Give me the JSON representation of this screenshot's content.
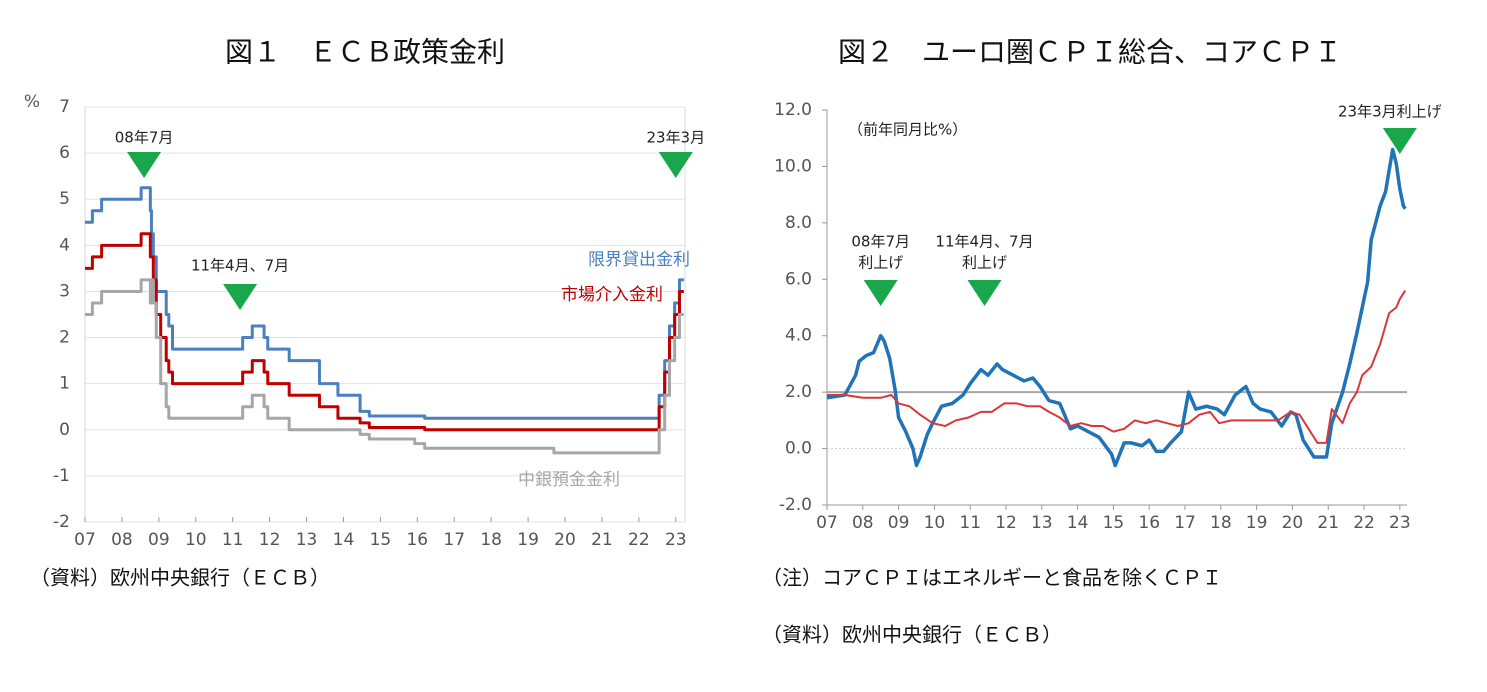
{
  "chart_data": [
    {
      "type": "line",
      "step": true,
      "title": "図１　ＥＣＢ政策金利",
      "unit": "%",
      "x": [
        2007.0,
        2007.2,
        2007.45,
        2008.52,
        2008.77,
        2008.8,
        2008.85,
        2008.93,
        2009.05,
        2009.2,
        2009.27,
        2009.37,
        2011.27,
        2011.53,
        2011.85,
        2011.95,
        2012.53,
        2013.35,
        2013.85,
        2014.45,
        2014.7,
        2015.93,
        2016.2,
        2019.7,
        2022.55,
        2022.7,
        2022.83,
        2022.97,
        2023.1,
        2023.22
      ],
      "series": [
        {
          "name": "限界貸出金利",
          "color": "#4a7fc1",
          "values": [
            4.5,
            4.75,
            5.0,
            5.25,
            4.75,
            4.25,
            3.75,
            3.0,
            3.0,
            2.5,
            2.25,
            1.75,
            2.0,
            2.25,
            2.0,
            1.75,
            1.5,
            1.0,
            0.75,
            0.4,
            0.3,
            0.3,
            0.25,
            0.25,
            0.75,
            1.5,
            2.25,
            2.75,
            3.25,
            3.25
          ]
        },
        {
          "name": "市場介入金利",
          "color": "#c00000",
          "values": [
            3.5,
            3.75,
            4.0,
            4.25,
            3.75,
            3.75,
            3.25,
            2.5,
            2.0,
            1.5,
            1.25,
            1.0,
            1.25,
            1.5,
            1.25,
            1.0,
            0.75,
            0.5,
            0.25,
            0.15,
            0.05,
            0.05,
            0,
            0,
            0.5,
            1.25,
            2.0,
            2.5,
            3.0,
            3.0
          ]
        },
        {
          "name": "中銀預金金利",
          "color": "#a6a6a6",
          "values": [
            2.5,
            2.75,
            3.0,
            3.25,
            2.75,
            3.25,
            2.75,
            2.0,
            1.0,
            0.5,
            0.25,
            0.25,
            0.5,
            0.75,
            0.5,
            0.25,
            0,
            0,
            0,
            -0.1,
            -0.2,
            -0.3,
            -0.4,
            -0.5,
            0,
            0.75,
            1.5,
            2.0,
            2.5,
            2.5
          ]
        }
      ],
      "xlim": [
        2007,
        2023.25
      ],
      "xticks": [
        {
          "value": 2007,
          "label": "07"
        },
        {
          "value": 2008,
          "label": "08"
        },
        {
          "value": 2009,
          "label": "09"
        },
        {
          "value": 2010,
          "label": "10"
        },
        {
          "value": 2011,
          "label": "11"
        },
        {
          "value": 2012,
          "label": "12"
        },
        {
          "value": 2013,
          "label": "13"
        },
        {
          "value": 2014,
          "label": "14"
        },
        {
          "value": 2015,
          "label": "15"
        },
        {
          "value": 2016,
          "label": "16"
        },
        {
          "value": 2017,
          "label": "17"
        },
        {
          "value": 2018,
          "label": "18"
        },
        {
          "value": 2019,
          "label": "19"
        },
        {
          "value": 2020,
          "label": "20"
        },
        {
          "value": 2021,
          "label": "21"
        },
        {
          "value": 2022,
          "label": "22"
        },
        {
          "value": 2023,
          "label": "23"
        }
      ],
      "ylim": [
        -2,
        7
      ],
      "yticks": [
        -2,
        -1,
        0,
        1,
        2,
        3,
        4,
        5,
        6,
        7
      ],
      "grid": true,
      "annotations": [
        {
          "label": [
            "08年7月"
          ],
          "x": 2008.6
        },
        {
          "label": [
            "11年4月、7月"
          ],
          "x": 2011.2
        },
        {
          "label": [
            "23年3月"
          ],
          "x": 2023.0
        }
      ],
      "annotation_color": "#1aa64a",
      "notes": [
        "（資料）欧州中央銀行（ＥＣＢ）"
      ]
    },
    {
      "type": "line",
      "title": "図２　ユーロ圏ＣＰＩ総合、コアＣＰＩ",
      "subtitle": "（前年同月比%）",
      "series": [
        {
          "color": "#1f73b7",
          "width": 3.5,
          "x": [
            2007.0,
            2007.5,
            2007.8,
            2007.9,
            2008.1,
            2008.3,
            2008.5,
            2008.6,
            2008.75,
            2008.9,
            2009.0,
            2009.2,
            2009.4,
            2009.5,
            2009.6,
            2009.8,
            2009.95,
            2010.2,
            2010.5,
            2010.8,
            2011.0,
            2011.3,
            2011.5,
            2011.75,
            2011.9,
            2012.2,
            2012.5,
            2012.75,
            2012.95,
            2013.2,
            2013.5,
            2013.8,
            2014.0,
            2014.3,
            2014.6,
            2014.95,
            2015.05,
            2015.3,
            2015.5,
            2015.8,
            2016.0,
            2016.2,
            2016.4,
            2016.6,
            2016.9,
            2017.1,
            2017.3,
            2017.6,
            2017.9,
            2018.1,
            2018.4,
            2018.7,
            2018.9,
            2019.1,
            2019.4,
            2019.7,
            2019.95,
            2020.1,
            2020.3,
            2020.6,
            2020.95,
            2021.1,
            2021.4,
            2021.6,
            2021.8,
            2021.95,
            2022.1,
            2022.2,
            2022.45,
            2022.6,
            2022.8,
            2022.9,
            2023.0,
            2023.1,
            2023.15
          ],
          "values": [
            1.8,
            1.9,
            2.6,
            3.1,
            3.3,
            3.4,
            4.0,
            3.8,
            3.2,
            2.1,
            1.1,
            0.6,
            0.0,
            -0.6,
            -0.3,
            0.5,
            0.9,
            1.5,
            1.6,
            1.9,
            2.3,
            2.8,
            2.6,
            3.0,
            2.8,
            2.6,
            2.4,
            2.5,
            2.2,
            1.7,
            1.6,
            0.7,
            0.8,
            0.6,
            0.4,
            -0.2,
            -0.6,
            0.2,
            0.2,
            0.1,
            0.3,
            -0.1,
            -0.1,
            0.2,
            0.6,
            2.0,
            1.4,
            1.5,
            1.4,
            1.2,
            1.9,
            2.2,
            1.6,
            1.4,
            1.3,
            0.8,
            1.3,
            1.2,
            0.3,
            -0.3,
            -0.3,
            0.9,
            2.0,
            3.0,
            4.1,
            5.0,
            5.9,
            7.4,
            8.6,
            9.1,
            10.6,
            10.1,
            9.2,
            8.6,
            8.5
          ]
        },
        {
          "color": "#d9373a",
          "width": 2,
          "x": [
            2007.0,
            2007.5,
            2008.0,
            2008.5,
            2008.8,
            2009.0,
            2009.3,
            2009.6,
            2009.95,
            2010.3,
            2010.6,
            2010.95,
            2011.3,
            2011.6,
            2011.95,
            2012.3,
            2012.6,
            2012.95,
            2013.2,
            2013.5,
            2013.8,
            2014.1,
            2014.4,
            2014.7,
            2015.0,
            2015.3,
            2015.6,
            2015.9,
            2016.2,
            2016.5,
            2016.8,
            2017.1,
            2017.4,
            2017.7,
            2017.95,
            2018.3,
            2018.6,
            2018.95,
            2019.3,
            2019.6,
            2019.95,
            2020.2,
            2020.5,
            2020.7,
            2020.95,
            2021.1,
            2021.4,
            2021.6,
            2021.8,
            2021.95,
            2022.2,
            2022.45,
            2022.7,
            2022.9,
            2023.0,
            2023.15
          ],
          "values": [
            1.9,
            1.9,
            1.8,
            1.8,
            1.9,
            1.6,
            1.5,
            1.2,
            0.9,
            0.8,
            1.0,
            1.1,
            1.3,
            1.3,
            1.6,
            1.6,
            1.5,
            1.5,
            1.3,
            1.1,
            0.8,
            0.9,
            0.8,
            0.8,
            0.6,
            0.7,
            1.0,
            0.9,
            1.0,
            0.9,
            0.8,
            0.9,
            1.2,
            1.3,
            0.9,
            1.0,
            1.0,
            1.0,
            1.0,
            1.0,
            1.3,
            1.2,
            0.6,
            0.2,
            0.2,
            1.4,
            0.9,
            1.6,
            2.0,
            2.6,
            2.9,
            3.7,
            4.8,
            5.0,
            5.3,
            5.6
          ]
        }
      ],
      "xlim": [
        2007,
        2023.2
      ],
      "xticks": [
        {
          "value": 2007,
          "label": "07"
        },
        {
          "value": 2008,
          "label": "08"
        },
        {
          "value": 2009,
          "label": "09"
        },
        {
          "value": 2010,
          "label": "10"
        },
        {
          "value": 2011,
          "label": "11"
        },
        {
          "value": 2012,
          "label": "12"
        },
        {
          "value": 2013,
          "label": "13"
        },
        {
          "value": 2014,
          "label": "14"
        },
        {
          "value": 2015,
          "label": "15"
        },
        {
          "value": 2016,
          "label": "16"
        },
        {
          "value": 2017,
          "label": "17"
        },
        {
          "value": 2018,
          "label": "18"
        },
        {
          "value": 2019,
          "label": "19"
        },
        {
          "value": 2020,
          "label": "20"
        },
        {
          "value": 2021,
          "label": "21"
        },
        {
          "value": 2022,
          "label": "22"
        },
        {
          "value": 2023,
          "label": "23"
        }
      ],
      "ylim": [
        -2,
        12
      ],
      "yticks": [
        {
          "value": -2,
          "label": "-2.0"
        },
        {
          "value": 0,
          "label": "0.0"
        },
        {
          "value": 2,
          "label": "2.0"
        },
        {
          "value": 4,
          "label": "4.0"
        },
        {
          "value": 6,
          "label": "6.0"
        },
        {
          "value": 8,
          "label": "8.0"
        },
        {
          "value": 10,
          "label": "10.0"
        },
        {
          "value": 12,
          "label": "12.0"
        }
      ],
      "grid": false,
      "hline": 2,
      "annotations": [
        {
          "label": [
            "08年7月",
            "利上げ"
          ],
          "x": 2008.5
        },
        {
          "label": [
            "11年4月、7月",
            "利上げ"
          ],
          "x": 2011.4
        },
        {
          "label": [
            "23年3月利上げ"
          ],
          "x": 2023.0
        }
      ],
      "annotation_color": "#1aa64a",
      "notes": [
        "（注）コアＣＰＩはエネルギーと食品を除くＣＰＩ",
        "（資料）欧州中央銀行（ＥＣＢ）"
      ]
    }
  ]
}
